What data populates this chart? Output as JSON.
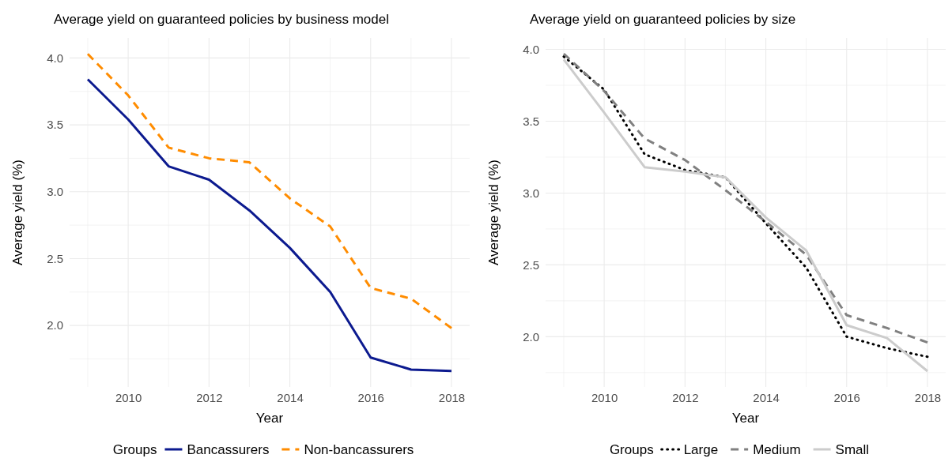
{
  "chart_data": [
    {
      "type": "line",
      "title": "Average yield on guaranteed policies by business model",
      "xlabel": "Year",
      "ylabel": "Average yield (%)",
      "legend_title": "Groups",
      "legend": "bottom",
      "grid": true,
      "x": [
        2009,
        2010,
        2011,
        2012,
        2013,
        2014,
        2015,
        2016,
        2017,
        2018
      ],
      "xlim": [
        2008.55,
        2018.45
      ],
      "xticks": [
        {
          "value": 2009,
          "label": null
        },
        2010,
        {
          "value": 2011,
          "label": null
        },
        2012,
        {
          "value": 2013,
          "label": null
        },
        2014,
        {
          "value": 2015,
          "label": null
        },
        2016,
        {
          "value": 2017,
          "label": null
        },
        2018
      ],
      "ylim": [
        1.54,
        4.15
      ],
      "yticks": [
        {
          "value": 1.75,
          "label": null
        },
        {
          "value": 2,
          "label": "2.0"
        },
        {
          "value": 2.25,
          "label": null
        },
        {
          "value": 2.5,
          "label": "2.5"
        },
        {
          "value": 2.75,
          "label": null
        },
        {
          "value": 3,
          "label": "3.0"
        },
        {
          "value": 3.25,
          "label": null
        },
        {
          "value": 3.5,
          "label": "3.5"
        },
        {
          "value": 3.75,
          "label": null
        },
        {
          "value": 4,
          "label": "4.0"
        }
      ],
      "series": [
        {
          "name": "Bancassurers",
          "color": "#0c1a8f",
          "line_style": "solid",
          "values": [
            3.84,
            3.54,
            3.19,
            3.09,
            2.86,
            2.58,
            2.25,
            1.76,
            1.67,
            1.66
          ]
        },
        {
          "name": "Non-bancassurers",
          "color": "#ff8c00",
          "line_style": "dashed",
          "values": [
            4.03,
            3.72,
            3.33,
            3.25,
            3.22,
            2.95,
            2.74,
            2.28,
            2.2,
            1.98
          ]
        }
      ]
    },
    {
      "type": "line",
      "title": "Average yield on guaranteed policies by size",
      "xlabel": "Year",
      "ylabel": "Average yield (%)",
      "legend_title": "Groups",
      "legend": "bottom",
      "grid": true,
      "x": [
        2009,
        2010,
        2011,
        2012,
        2013,
        2014,
        2015,
        2016,
        2017,
        2018
      ],
      "xlim": [
        2008.55,
        2018.45
      ],
      "xticks": [
        {
          "value": 2009,
          "label": null
        },
        2010,
        {
          "value": 2011,
          "label": null
        },
        2012,
        {
          "value": 2013,
          "label": null
        },
        2014,
        {
          "value": 2015,
          "label": null
        },
        2016,
        {
          "value": 2017,
          "label": null
        },
        2018
      ],
      "ylim": [
        1.65,
        4.08
      ],
      "yticks": [
        {
          "value": 1.75,
          "label": null
        },
        {
          "value": 2,
          "label": "2.0"
        },
        {
          "value": 2.25,
          "label": null
        },
        {
          "value": 2.5,
          "label": "2.5"
        },
        {
          "value": 2.75,
          "label": null
        },
        {
          "value": 3,
          "label": "3.0"
        },
        {
          "value": 3.25,
          "label": null
        },
        {
          "value": 3.5,
          "label": "3.5"
        },
        {
          "value": 3.75,
          "label": null
        },
        {
          "value": 4,
          "label": "4.0"
        }
      ],
      "series": [
        {
          "name": "Large",
          "color": "#000000",
          "line_style": "dotted",
          "values": [
            3.95,
            3.72,
            3.27,
            3.16,
            3.11,
            2.79,
            2.48,
            2.0,
            1.92,
            1.86
          ]
        },
        {
          "name": "Medium",
          "color": "#808080",
          "line_style": "dashed",
          "values": [
            3.97,
            3.71,
            3.38,
            3.23,
            3.02,
            2.8,
            2.57,
            2.15,
            2.06,
            1.96
          ]
        },
        {
          "name": "Small",
          "color": "#cccccc",
          "line_style": "solid",
          "values": [
            3.93,
            3.56,
            3.18,
            3.15,
            3.11,
            2.83,
            2.6,
            2.08,
            1.99,
            1.76
          ]
        }
      ]
    }
  ]
}
